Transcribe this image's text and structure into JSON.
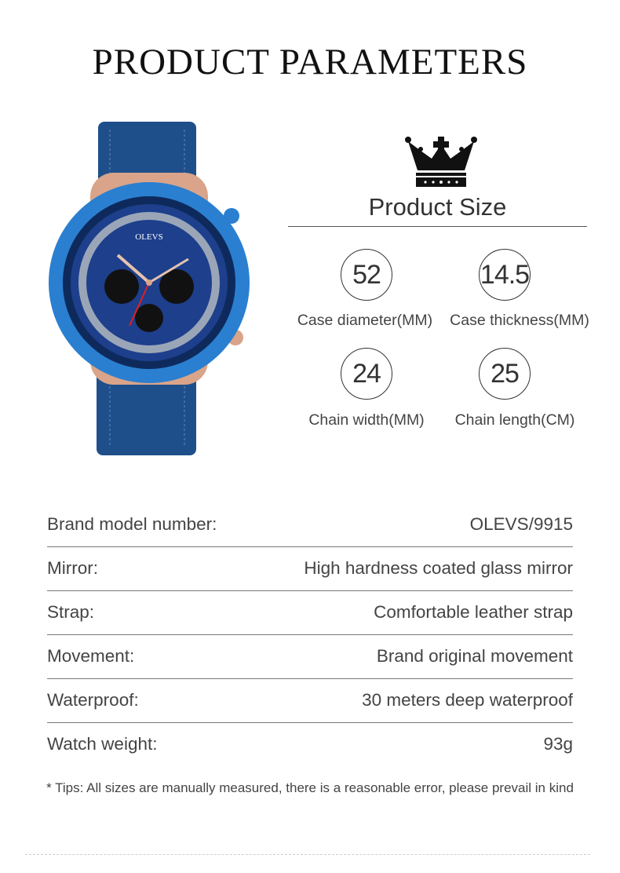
{
  "title": "PRODUCT PARAMETERS",
  "watch": {
    "logo_text": "OLEVS"
  },
  "size_section": {
    "heading": "Product Size",
    "specs": [
      {
        "value": "52",
        "label": "Case diameter(MM)"
      },
      {
        "value": "14.5",
        "label": "Case thickness(MM)"
      },
      {
        "value": "24",
        "label": "Chain width(MM)"
      },
      {
        "value": "25",
        "label": "Chain length(CM)"
      }
    ]
  },
  "parameters": [
    {
      "label": "Brand model number:",
      "value": "OLEVS/9915"
    },
    {
      "label": "Mirror:",
      "value": "High hardness coated glass mirror"
    },
    {
      "label": "Strap:",
      "value": "Comfortable leather strap"
    },
    {
      "label": "Movement:",
      "value": "Brand original movement"
    },
    {
      "label": "Waterproof:",
      "value": "30 meters deep waterproof"
    },
    {
      "label": "Watch weight:",
      "value": "93g"
    }
  ],
  "tips": "* Tips: All sizes are manually measured, there is a reasonable error, please prevail in kind",
  "colors": {
    "strap": "#1f4f8a",
    "bezel": "#2a7fd0",
    "case": "#d9a489",
    "dial": "#1d3f8c"
  }
}
